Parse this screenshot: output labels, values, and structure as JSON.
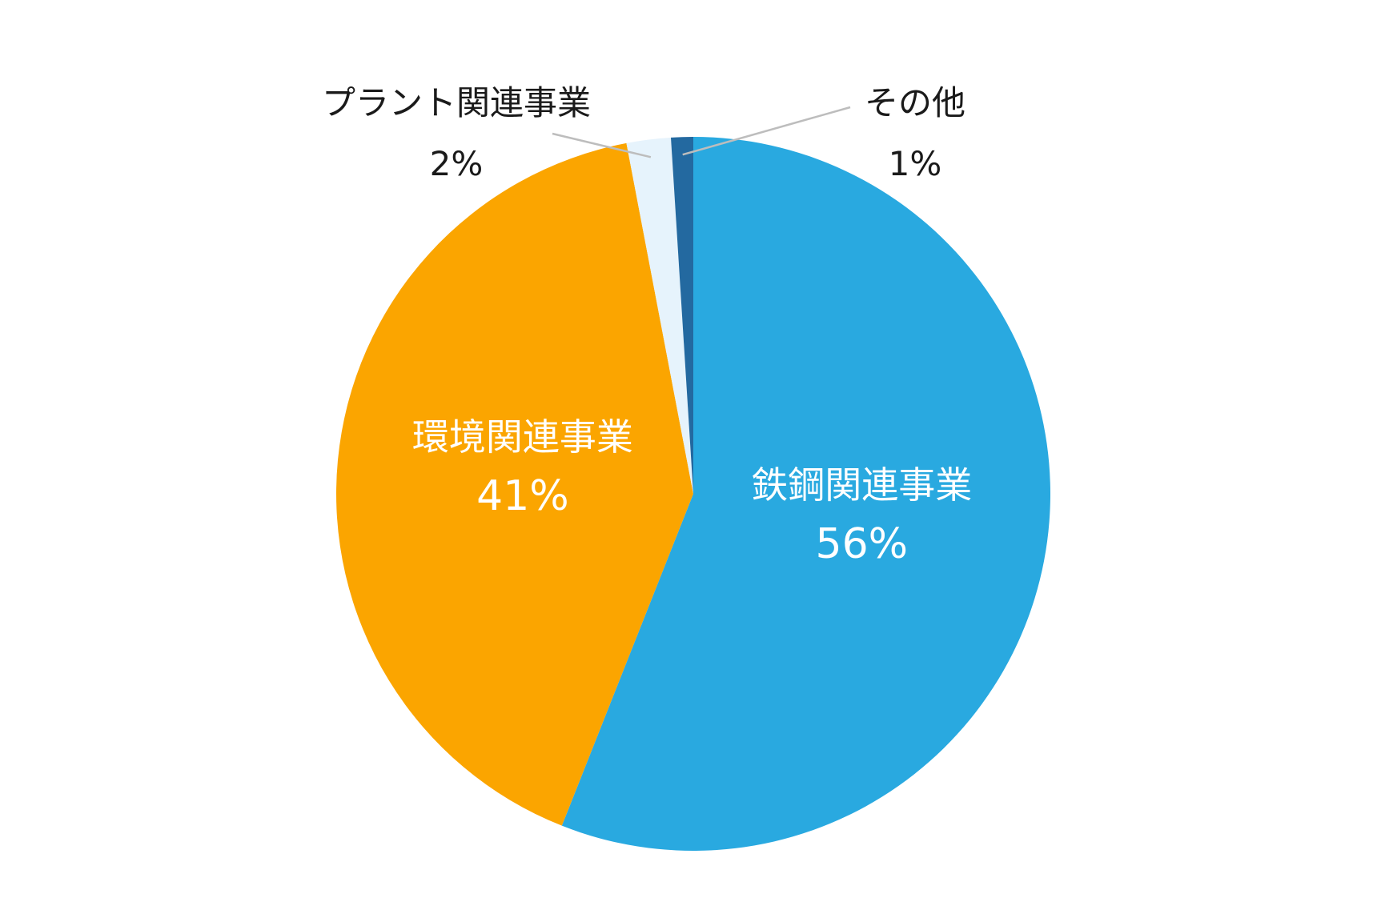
{
  "chart_data": {
    "type": "pie",
    "title": "",
    "start_angle_deg": 0,
    "direction": "clockwise",
    "slices": [
      {
        "label": "鉄鋼関連事業",
        "value": 56,
        "value_label": "56%",
        "color": "#29a9e0",
        "label_position": "inside"
      },
      {
        "label": "環境関連事業",
        "value": 41,
        "value_label": "41%",
        "color": "#fba500",
        "label_position": "inside"
      },
      {
        "label": "プラント関連事業",
        "value": 2,
        "value_label": "2%",
        "color": "#e6f3fc",
        "label_position": "outside-left"
      },
      {
        "label": "その他",
        "value": 1,
        "value_label": "1%",
        "color": "#2369a0",
        "label_position": "outside-right"
      }
    ],
    "legend": "none"
  }
}
